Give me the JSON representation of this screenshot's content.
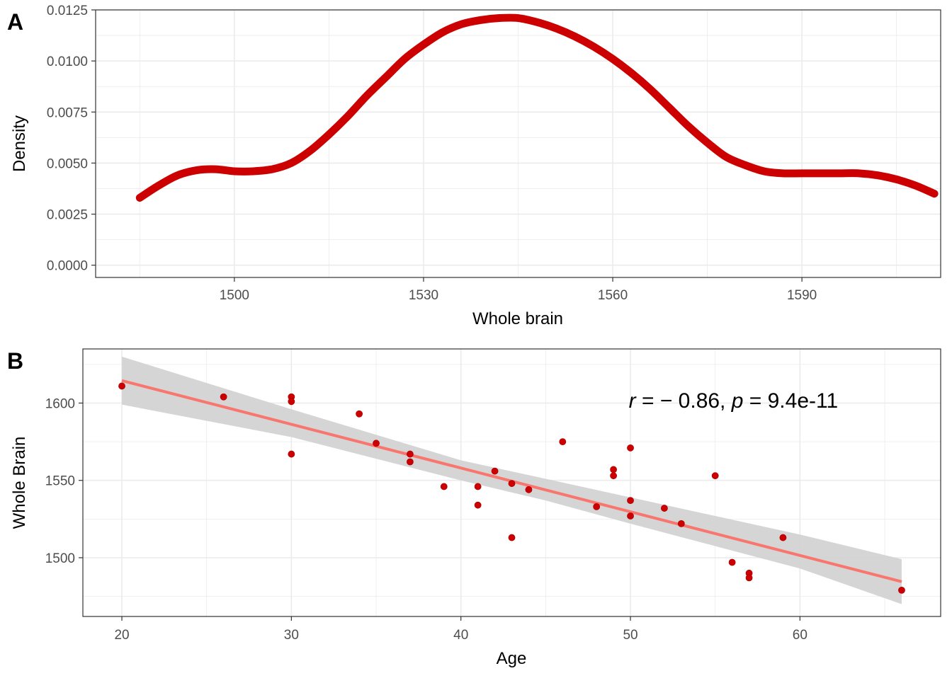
{
  "colors": {
    "density_line": "#cc0000",
    "points": "#cc0000",
    "regression_line": "#f8766d",
    "confidence_band": "#d3d3d3",
    "grid": "#ebebeb",
    "panel_border": "#333333"
  },
  "chart_data": [
    {
      "panel": "A",
      "type": "line",
      "style": "density curve drawn with thick dotted markers",
      "xlabel": "Whole brain",
      "ylabel": "Density",
      "xlim": [
        1478,
        1612
      ],
      "ylim": [
        -0.0006,
        0.0125
      ],
      "x_ticks": [
        1500,
        1530,
        1560,
        1590
      ],
      "y_ticks": [
        0.0,
        0.0025,
        0.005,
        0.0075,
        0.01,
        0.0125
      ],
      "x_tick_labels": [
        "1500",
        "1530",
        "1560",
        "1590"
      ],
      "y_tick_labels": [
        "0.0000",
        "0.0025",
        "0.0050",
        "0.0075",
        "0.0100",
        "0.0125"
      ],
      "grid": true,
      "series": [
        {
          "x": [
            1485,
            1488,
            1491,
            1494,
            1497,
            1500,
            1503,
            1506,
            1509,
            1512,
            1515,
            1518,
            1521,
            1524,
            1527,
            1530,
            1533,
            1536,
            1539,
            1542,
            1545,
            1548,
            1551,
            1554,
            1557,
            1560,
            1563,
            1566,
            1569,
            1572,
            1575,
            1578,
            1581,
            1584,
            1587,
            1590,
            1593,
            1596,
            1599,
            1602,
            1605,
            1608,
            1611
          ],
          "y": [
            0.0033,
            0.0039,
            0.0044,
            0.00465,
            0.0047,
            0.0046,
            0.0046,
            0.0047,
            0.005,
            0.0056,
            0.0064,
            0.0073,
            0.0083,
            0.0092,
            0.0101,
            0.0108,
            0.0114,
            0.0118,
            0.012,
            0.0121,
            0.0121,
            0.0119,
            0.0116,
            0.0112,
            0.0107,
            0.0101,
            0.0094,
            0.0086,
            0.0077,
            0.0068,
            0.006,
            0.0053,
            0.0049,
            0.0046,
            0.0045,
            0.0045,
            0.0045,
            0.0045,
            0.0045,
            0.0044,
            0.0042,
            0.0039,
            0.0035
          ]
        }
      ]
    },
    {
      "panel": "B",
      "type": "scatter",
      "xlabel": "Age",
      "ylabel": "Whole Brain",
      "xlim": [
        17.7,
        68.3
      ],
      "ylim": [
        1462,
        1635
      ],
      "x_ticks": [
        20,
        30,
        40,
        50,
        60
      ],
      "y_ticks": [
        1500,
        1550,
        1600
      ],
      "x_tick_labels": [
        "20",
        "30",
        "40",
        "50",
        "60"
      ],
      "y_tick_labels": [
        "1500",
        "1550",
        "1600"
      ],
      "grid": true,
      "annotation": {
        "r_symbol": "r",
        "r_text": " = − 0.86, ",
        "p_symbol": "p",
        "p_text": " = 9.4e-11",
        "x": 49.9,
        "y": 1597
      },
      "points": [
        [
          20,
          1611
        ],
        [
          26,
          1604
        ],
        [
          30,
          1604
        ],
        [
          30,
          1601
        ],
        [
          30,
          1567
        ],
        [
          34,
          1593
        ],
        [
          35,
          1574
        ],
        [
          37,
          1567
        ],
        [
          37,
          1562
        ],
        [
          39,
          1546
        ],
        [
          41,
          1546
        ],
        [
          41,
          1534
        ],
        [
          42,
          1556
        ],
        [
          43,
          1548
        ],
        [
          43,
          1513
        ],
        [
          44,
          1544
        ],
        [
          46,
          1575
        ],
        [
          48,
          1533
        ],
        [
          49,
          1557
        ],
        [
          49,
          1553
        ],
        [
          50,
          1571
        ],
        [
          50,
          1537
        ],
        [
          50,
          1527
        ],
        [
          52,
          1532
        ],
        [
          53,
          1522
        ],
        [
          55,
          1553
        ],
        [
          56,
          1497
        ],
        [
          57,
          1490
        ],
        [
          57,
          1487
        ],
        [
          59,
          1513
        ],
        [
          66,
          1479
        ]
      ],
      "regression": {
        "x": [
          20,
          66
        ],
        "y": [
          1614.5,
          1484.5
        ]
      },
      "confidence_band": {
        "x": [
          20,
          30,
          40,
          45,
          50,
          60,
          66
        ],
        "lower": [
          1599,
          1578,
          1550,
          1537,
          1522,
          1493,
          1470
        ],
        "upper": [
          1630,
          1596,
          1563,
          1551,
          1539,
          1515,
          1499
        ]
      }
    }
  ],
  "panels": {
    "a": {
      "tag": "A"
    },
    "b": {
      "tag": "B"
    }
  }
}
